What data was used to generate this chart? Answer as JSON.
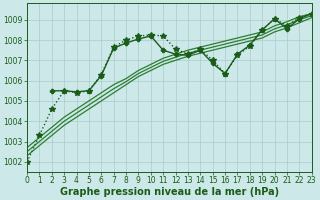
{
  "title": "Graphe pression niveau de la mer (hPa)",
  "background_color": "#cce8e8",
  "grid_color": "#aacccc",
  "dark_green": "#1a5c1a",
  "mid_green": "#2e7d32",
  "xlim": [
    0,
    23
  ],
  "ylim": [
    1001.5,
    1009.8
  ],
  "yticks": [
    1002,
    1003,
    1004,
    1005,
    1006,
    1007,
    1008,
    1009
  ],
  "xticks": [
    0,
    1,
    2,
    3,
    4,
    5,
    6,
    7,
    8,
    9,
    10,
    11,
    12,
    13,
    14,
    15,
    16,
    17,
    18,
    19,
    20,
    21,
    22,
    23
  ],
  "series": [
    {
      "x": [
        0,
        1,
        2,
        3,
        4,
        5,
        6,
        7,
        8,
        9,
        10,
        11,
        12,
        13,
        14,
        15,
        16,
        17,
        18,
        19,
        20,
        21,
        22,
        23
      ],
      "y": [
        1002.0,
        1003.3,
        1004.6,
        1005.5,
        1005.4,
        1005.5,
        1006.3,
        1007.65,
        1008.0,
        1008.2,
        1008.25,
        1008.2,
        1007.55,
        1007.3,
        1007.55,
        1007.0,
        1006.35,
        1007.25,
        1007.7,
        1008.5,
        1009.05,
        1008.7,
        1009.1,
        1009.3
      ],
      "color": "#1a5c1a",
      "lw": 1.0,
      "marker": "*",
      "ms": 4,
      "ls": ":"
    },
    {
      "x": [
        2,
        3,
        4,
        5,
        6,
        7,
        8,
        9,
        10,
        11,
        12,
        13,
        14,
        15,
        16,
        17,
        18,
        19,
        20,
        21,
        22,
        23
      ],
      "y": [
        1005.5,
        1005.5,
        1005.45,
        1005.5,
        1006.25,
        1007.6,
        1007.85,
        1008.05,
        1008.2,
        1007.5,
        1007.3,
        1007.25,
        1007.5,
        1006.85,
        1006.35,
        1007.3,
        1007.75,
        1008.5,
        1009.05,
        1008.55,
        1009.05,
        1009.3
      ],
      "color": "#1a5c1a",
      "lw": 1.0,
      "marker": "P",
      "ms": 3,
      "ls": "-"
    },
    {
      "x": [
        0,
        1,
        2,
        3,
        4,
        5,
        6,
        7,
        8,
        9,
        10,
        11,
        12,
        13,
        14,
        15,
        16,
        17,
        18,
        19,
        20,
        21,
        22,
        23
      ],
      "y": [
        1002.3,
        1002.8,
        1003.3,
        1003.8,
        1004.2,
        1004.6,
        1005.0,
        1005.4,
        1005.8,
        1006.2,
        1006.5,
        1006.8,
        1007.0,
        1007.2,
        1007.35,
        1007.5,
        1007.65,
        1007.8,
        1007.95,
        1008.1,
        1008.4,
        1008.6,
        1008.85,
        1009.1
      ],
      "color": "#2e7d32",
      "lw": 0.9,
      "marker": null,
      "ms": 0,
      "ls": "-"
    },
    {
      "x": [
        0,
        1,
        2,
        3,
        4,
        5,
        6,
        7,
        8,
        9,
        10,
        11,
        12,
        13,
        14,
        15,
        16,
        17,
        18,
        19,
        20,
        21,
        22,
        23
      ],
      "y": [
        1002.5,
        1003.0,
        1003.5,
        1004.0,
        1004.4,
        1004.8,
        1005.2,
        1005.6,
        1005.95,
        1006.35,
        1006.65,
        1006.95,
        1007.15,
        1007.35,
        1007.5,
        1007.65,
        1007.8,
        1007.95,
        1008.1,
        1008.25,
        1008.55,
        1008.75,
        1009.0,
        1009.2
      ],
      "color": "#2e7d32",
      "lw": 0.9,
      "marker": null,
      "ms": 0,
      "ls": "-"
    },
    {
      "x": [
        0,
        1,
        2,
        3,
        4,
        5,
        6,
        7,
        8,
        9,
        10,
        11,
        12,
        13,
        14,
        15,
        16,
        17,
        18,
        19,
        20,
        21,
        22,
        23
      ],
      "y": [
        1002.7,
        1003.2,
        1003.7,
        1004.2,
        1004.6,
        1005.0,
        1005.4,
        1005.8,
        1006.1,
        1006.5,
        1006.8,
        1007.1,
        1007.3,
        1007.5,
        1007.65,
        1007.8,
        1007.95,
        1008.1,
        1008.25,
        1008.4,
        1008.7,
        1008.9,
        1009.15,
        1009.3
      ],
      "color": "#2e7d32",
      "lw": 0.9,
      "marker": null,
      "ms": 0,
      "ls": "-"
    }
  ],
  "tick_fontsize": 5.5,
  "title_fontsize": 7.0,
  "title_color": "#1a5c1a"
}
